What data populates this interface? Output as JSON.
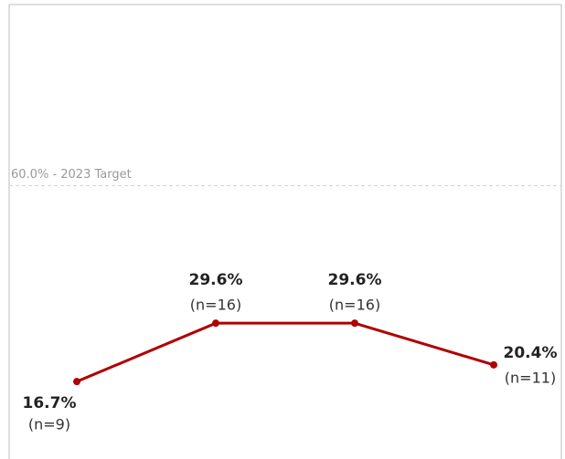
{
  "chart_data": {
    "type": "line",
    "categories": [
      null,
      null,
      null,
      null
    ],
    "series": [
      {
        "color": "#b00000",
        "values": [
          16.7,
          29.6,
          29.6,
          20.4
        ],
        "value_labels": [
          "16.7%",
          "29.6%",
          "29.6%",
          "20.4%"
        ],
        "counts": [
          9,
          16,
          16,
          11
        ],
        "count_labels": [
          "(n=9)",
          "(n=16)",
          "(n=16)",
          "(n=11)"
        ]
      }
    ],
    "ylim": [
      0,
      100
    ],
    "reference_line": {
      "value": 60,
      "label": "60.0% - 2023 Target"
    }
  }
}
